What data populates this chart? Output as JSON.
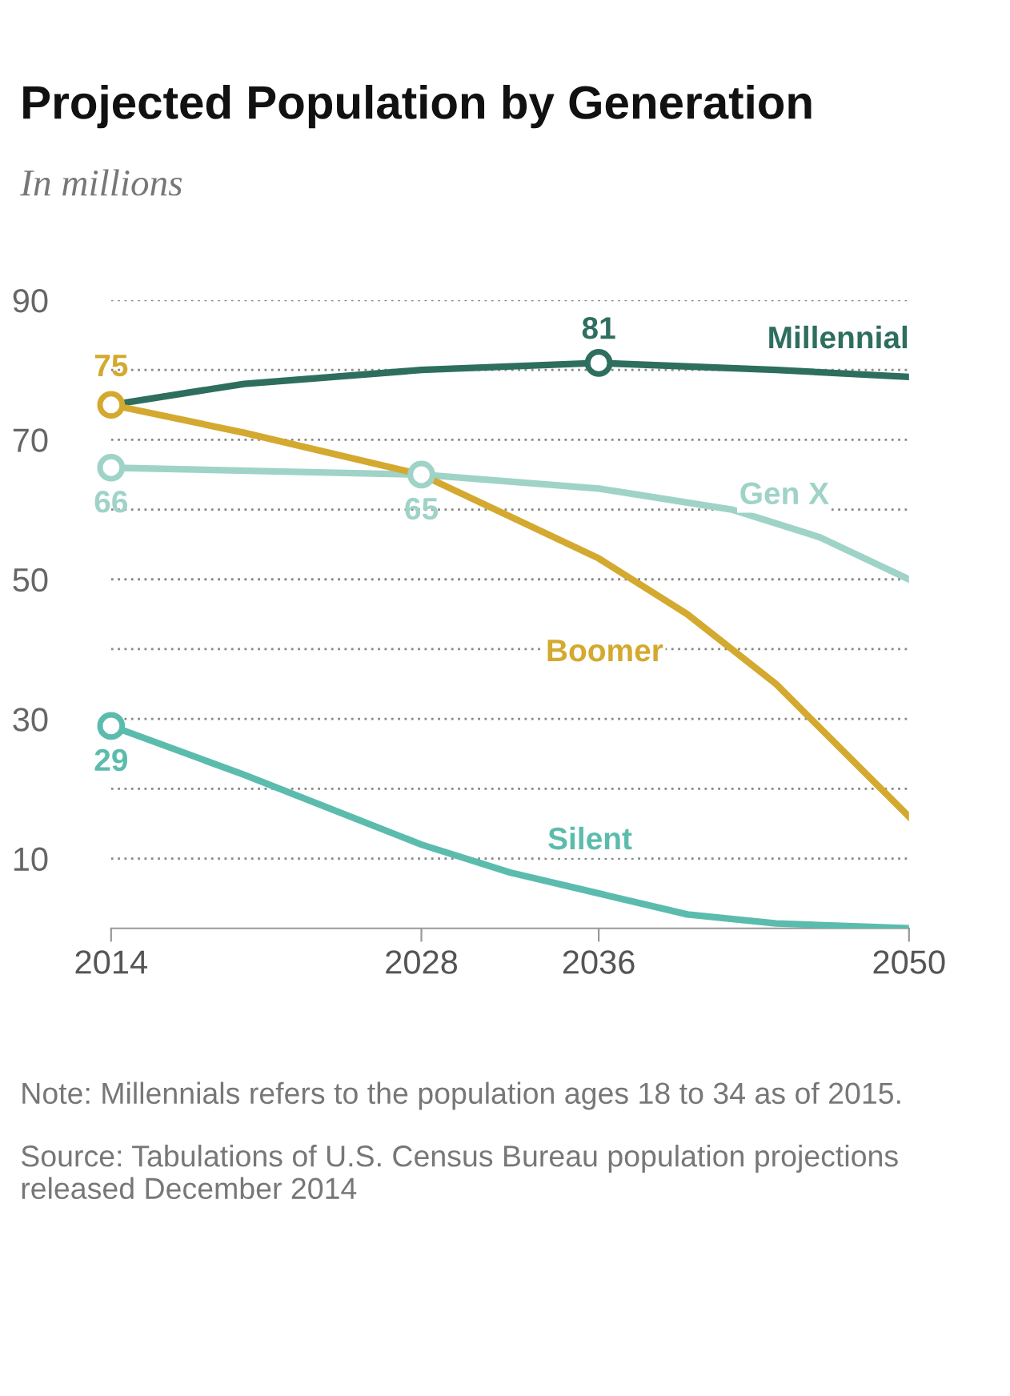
{
  "chart_data": {
    "type": "line",
    "title": "Projected Population by Generation",
    "subtitle": "In millions",
    "series": [
      {
        "name": "Millennial",
        "color": "#2e6e5e",
        "x": [
          2014,
          2020,
          2028,
          2036,
          2044,
          2050
        ],
        "values": [
          75,
          78,
          80,
          81,
          80,
          79
        ],
        "value_labels": [
          null,
          null,
          null,
          "81",
          null,
          null
        ]
      },
      {
        "name": "Gen X",
        "color": "#9fd3c7",
        "x": [
          2014,
          2028,
          2036,
          2042,
          2046,
          2050
        ],
        "values": [
          66,
          65,
          63,
          60,
          56,
          50
        ],
        "value_labels": [
          "66",
          "65",
          null,
          null,
          null,
          null
        ]
      },
      {
        "name": "Boomer",
        "color": "#d4a92f",
        "x": [
          2014,
          2020,
          2028,
          2032,
          2036,
          2040,
          2044,
          2050
        ],
        "values": [
          75,
          71,
          65,
          59,
          53,
          45,
          35,
          16
        ],
        "value_labels": [
          "75",
          null,
          null,
          null,
          null,
          null,
          null,
          null
        ]
      },
      {
        "name": "Silent",
        "color": "#5bbcae",
        "x": [
          2014,
          2020,
          2028,
          2032,
          2036,
          2040,
          2044,
          2050
        ],
        "values": [
          29,
          22,
          12,
          8,
          5,
          2,
          0.7,
          0
        ],
        "value_labels": [
          "29",
          null,
          null,
          null,
          null,
          null,
          null,
          null
        ]
      }
    ],
    "xlim": [
      2014,
      2050
    ],
    "xticks": [
      2014,
      2028,
      2036,
      2050
    ],
    "ylim": [
      0,
      90
    ],
    "yticks": [
      10,
      {
        "value": 20,
        "label": null
      },
      30,
      {
        "value": 40,
        "label": null
      },
      50,
      {
        "value": 60,
        "label": null
      },
      70,
      {
        "value": 80,
        "label": null
      },
      90
    ],
    "grid": "y",
    "legend": false,
    "line_style": "solid",
    "annotations": [
      "Note: Millennials refers to the population ages 18 to 34 as of 2015.",
      "Source: Tabulations of U.S. Census Bureau population projections released December 2014"
    ]
  }
}
